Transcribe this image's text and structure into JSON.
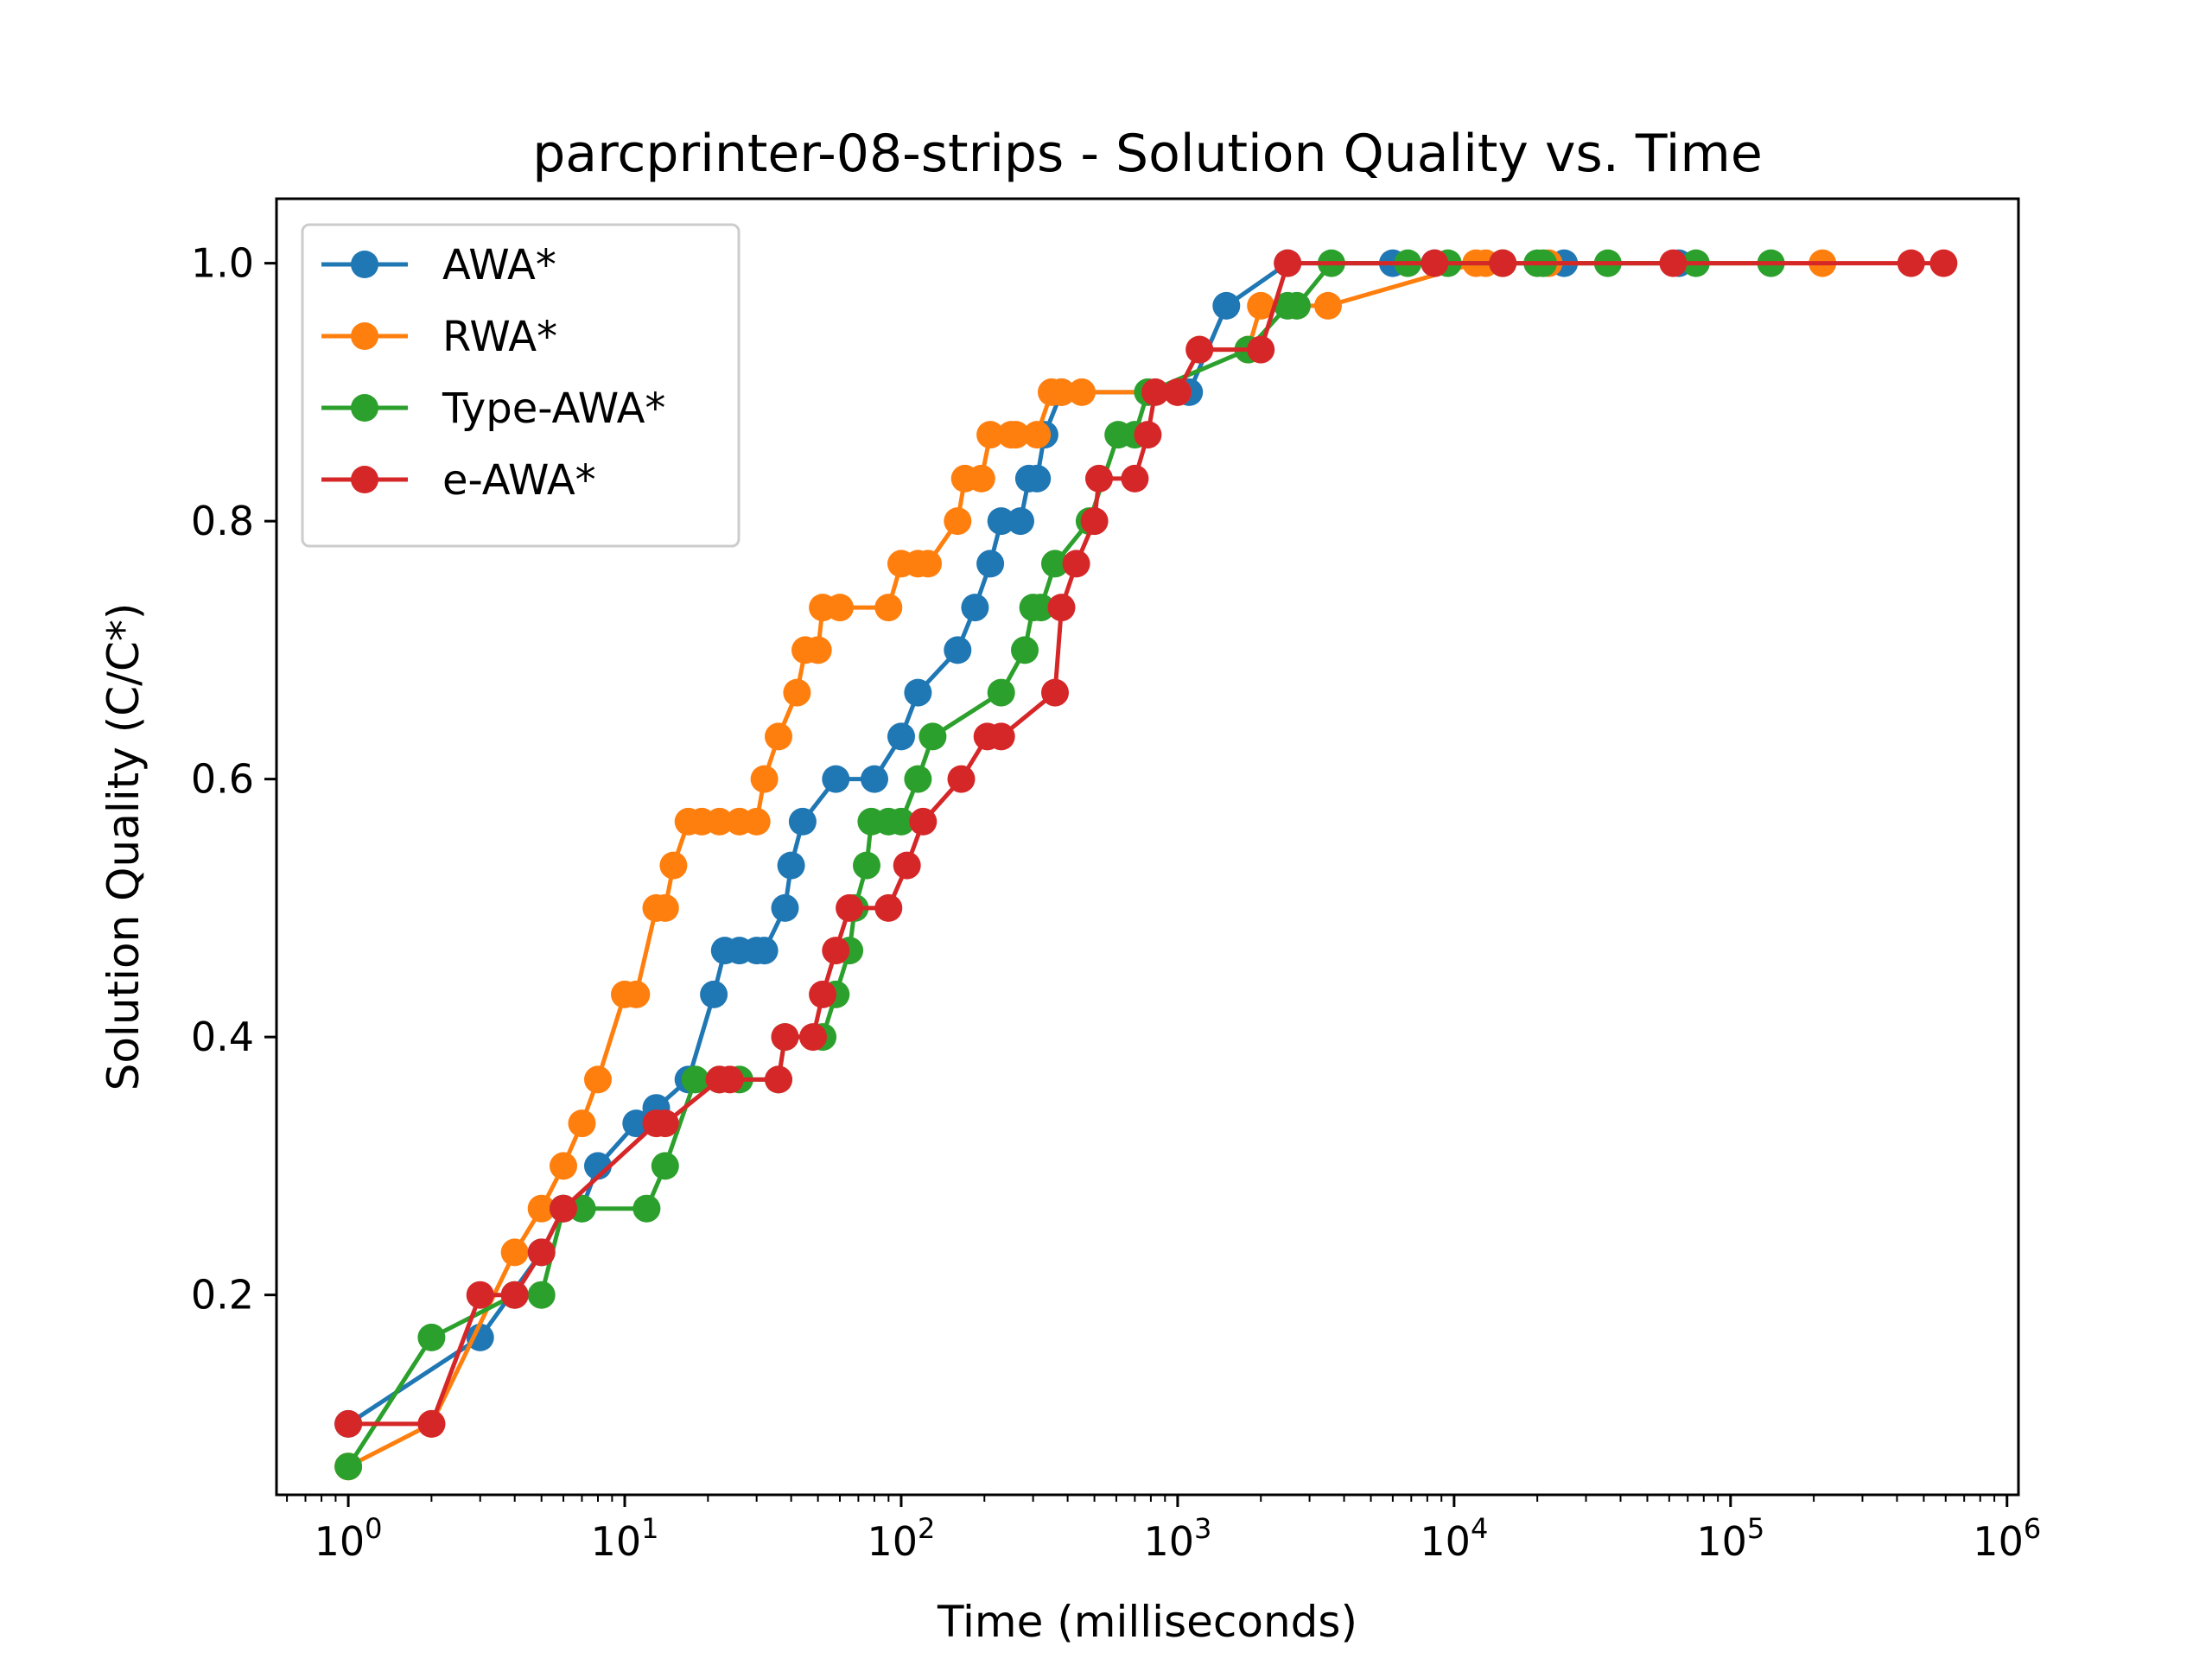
{
  "chart_data": {
    "type": "line",
    "title": "parcprinter-08-strips - Solution Quality vs. Time",
    "xlabel": "Time (milliseconds)",
    "ylabel": "Solution Quality (C/C*)",
    "xscale": "log",
    "xlim": [
      0.55,
      1100000
    ],
    "ylim": [
      0.045,
      1.05
    ],
    "x_ticks": [
      {
        "base": "10",
        "exp": "0",
        "value": 1
      },
      {
        "base": "10",
        "exp": "1",
        "value": 10
      },
      {
        "base": "10",
        "exp": "2",
        "value": 100
      },
      {
        "base": "10",
        "exp": "3",
        "value": 1000
      },
      {
        "base": "10",
        "exp": "4",
        "value": 10000
      },
      {
        "base": "10",
        "exp": "5",
        "value": 100000
      },
      {
        "base": "10",
        "exp": "6",
        "value": 1000000
      }
    ],
    "y_ticks": [
      {
        "label": "0.2",
        "value": 0.2
      },
      {
        "label": "0.4",
        "value": 0.4
      },
      {
        "label": "0.6",
        "value": 0.6
      },
      {
        "label": "0.8",
        "value": 0.8
      },
      {
        "label": "1.0",
        "value": 1.0
      }
    ],
    "grid": false,
    "legend": "upper-left",
    "series": [
      {
        "name": "AWA*",
        "color": "#1f77b4",
        "x": [
          1,
          3,
          5,
          6,
          7,
          8,
          11,
          13,
          17,
          21,
          23,
          26,
          30,
          32,
          38,
          40,
          44,
          58,
          80,
          100,
          115,
          160,
          185,
          210,
          230,
          270,
          290,
          310,
          330,
          380,
          1100,
          1500,
          2500,
          6000,
          8500,
          25000,
          65000
        ],
        "y": [
          0.1,
          0.167,
          0.233,
          0.267,
          0.267,
          0.3,
          0.333,
          0.345,
          0.367,
          0.433,
          0.467,
          0.467,
          0.467,
          0.467,
          0.5,
          0.533,
          0.567,
          0.6,
          0.6,
          0.633,
          0.667,
          0.7,
          0.733,
          0.767,
          0.8,
          0.8,
          0.833,
          0.833,
          0.867,
          0.9,
          0.9,
          0.967,
          1.0,
          1.0,
          1.0,
          1.0,
          1.0
        ]
      },
      {
        "name": "RWA*",
        "color": "#ff7f0e",
        "x": [
          1,
          2,
          4,
          5,
          6,
          7,
          8,
          10,
          11,
          13,
          14,
          15,
          17,
          19,
          22,
          26,
          30,
          32,
          36,
          42,
          45,
          50,
          52,
          60,
          90,
          100,
          115,
          125,
          160,
          170,
          195,
          210,
          250,
          260,
          310,
          350,
          380,
          450,
          1000,
          1200,
          1800,
          2000,
          3500,
          12000,
          13000,
          15000,
          22000,
          215000
        ],
        "y": [
          0.067,
          0.1,
          0.233,
          0.267,
          0.3,
          0.333,
          0.367,
          0.433,
          0.433,
          0.5,
          0.5,
          0.533,
          0.567,
          0.567,
          0.567,
          0.567,
          0.567,
          0.6,
          0.633,
          0.667,
          0.7,
          0.7,
          0.733,
          0.733,
          0.733,
          0.767,
          0.767,
          0.767,
          0.8,
          0.833,
          0.833,
          0.867,
          0.867,
          0.867,
          0.867,
          0.9,
          0.9,
          0.9,
          0.9,
          0.933,
          0.933,
          0.967,
          0.967,
          1.0,
          1.0,
          1.0,
          1.0,
          1.0
        ]
      },
      {
        "name": "Type-AWA*",
        "color": "#2ca02c",
        "x": [
          1,
          2,
          4,
          5,
          6,
          7,
          12,
          14,
          18,
          22,
          26,
          36,
          38,
          52,
          58,
          65,
          68,
          75,
          78,
          90,
          100,
          115,
          130,
          230,
          280,
          300,
          320,
          360,
          480,
          610,
          700,
          780,
          1800,
          2500,
          2700,
          3600,
          6800,
          9500,
          15000,
          20000,
          21000,
          36000,
          75000,
          140000
        ],
        "y": [
          0.067,
          0.167,
          0.2,
          0.2,
          0.267,
          0.267,
          0.267,
          0.3,
          0.367,
          0.367,
          0.367,
          0.367,
          0.4,
          0.4,
          0.433,
          0.467,
          0.5,
          0.533,
          0.567,
          0.567,
          0.567,
          0.6,
          0.633,
          0.667,
          0.7,
          0.733,
          0.733,
          0.767,
          0.8,
          0.867,
          0.867,
          0.9,
          0.933,
          0.967,
          0.967,
          1.0,
          1.0,
          1.0,
          1.0,
          1.0,
          1.0,
          1.0,
          1.0,
          1.0
        ]
      },
      {
        "name": "e-AWA*",
        "color": "#d62728",
        "x": [
          1,
          2,
          3,
          4,
          5,
          6,
          13,
          14,
          22,
          24,
          36,
          38,
          48,
          52,
          58,
          65,
          90,
          105,
          120,
          165,
          205,
          230,
          360,
          380,
          430,
          500,
          520,
          700,
          780,
          830,
          1000,
          1200,
          2000,
          2500,
          8500,
          15000,
          62000,
          450000,
          590000
        ],
        "y": [
          0.1,
          0.1,
          0.2,
          0.2,
          0.233,
          0.267,
          0.333,
          0.333,
          0.367,
          0.367,
          0.367,
          0.4,
          0.4,
          0.433,
          0.467,
          0.5,
          0.5,
          0.533,
          0.567,
          0.6,
          0.633,
          0.633,
          0.667,
          0.733,
          0.767,
          0.8,
          0.833,
          0.833,
          0.867,
          0.9,
          0.9,
          0.933,
          0.933,
          1.0,
          1.0,
          1.0,
          1.0,
          1.0,
          1.0
        ]
      }
    ]
  }
}
